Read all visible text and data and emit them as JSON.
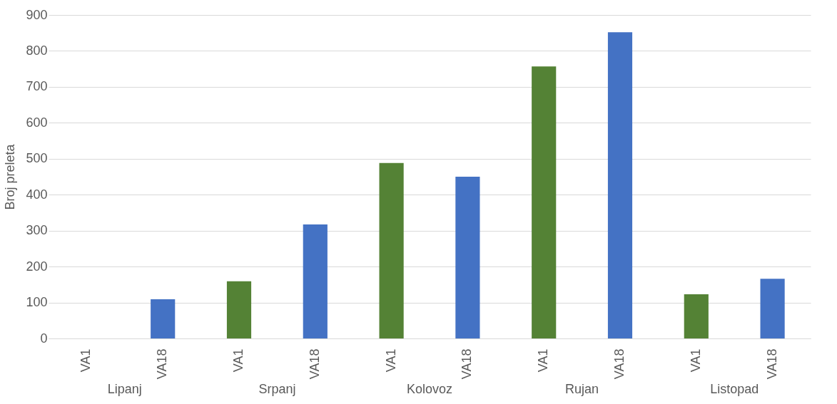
{
  "chart_data": {
    "type": "bar",
    "ylabel": "Broj preleta",
    "categories": [
      "VA1",
      "VA18",
      "VA1",
      "VA18",
      "VA1",
      "VA18",
      "VA1",
      "VA18",
      "VA1",
      "VA18"
    ],
    "values": [
      0,
      109,
      159,
      317,
      488,
      450,
      757,
      852,
      123,
      166
    ],
    "colors": [
      "#548235",
      "#4472c4",
      "#548235",
      "#4472c4",
      "#548235",
      "#4472c4",
      "#548235",
      "#4472c4",
      "#548235",
      "#4472c4"
    ],
    "annotations": [
      "Lipanj",
      "Srpanj",
      "Kolovoz",
      "Rujan",
      "Listopad"
    ],
    "ylim": [
      0,
      900
    ],
    "yticks": [
      0,
      100,
      200,
      300,
      400,
      500,
      600,
      700,
      800,
      900
    ],
    "grid": "y"
  }
}
